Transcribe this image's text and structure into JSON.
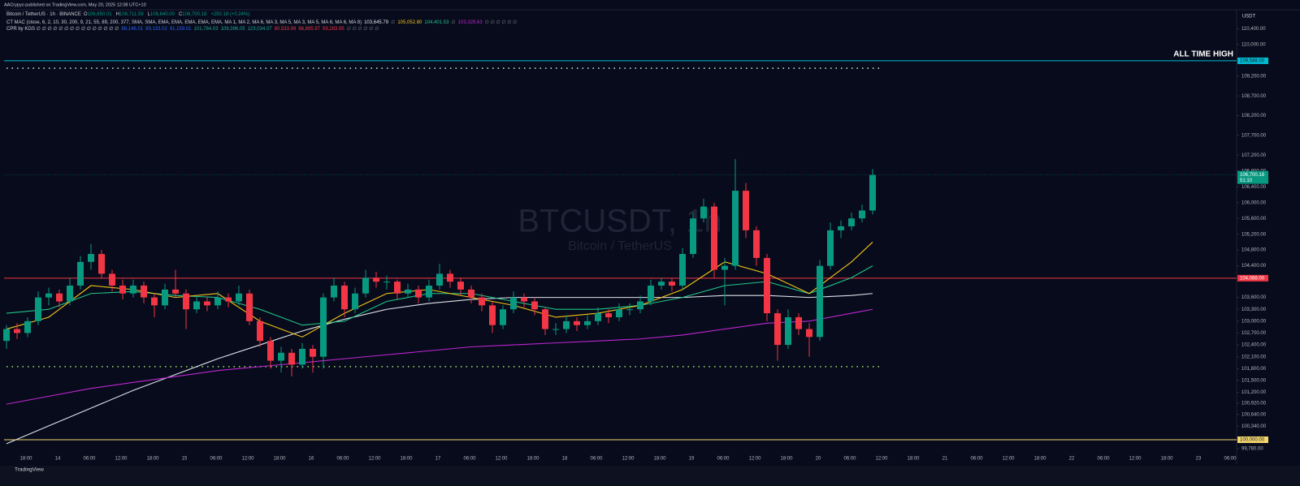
{
  "chart_data": {
    "type": "candlestick",
    "publisher": "AACrypyo published on TradingView.com, May 20, 2025 12:08 UTC+10",
    "symbol_line": {
      "name": "Bitcoin / TetherUS · 1h · BINANCE",
      "ohlc": [
        {
          "k": "O",
          "v": "106,650.01"
        },
        {
          "k": "H",
          "v": "106,711.59"
        },
        {
          "k": "L",
          "v": "106,640.00"
        },
        {
          "k": "C",
          "v": "106,700.18"
        }
      ],
      "change": "+250.18 (+0.24%)"
    },
    "ma_line": {
      "name": "CT MAC (close, 6, 2, 10, 30, 200, 9, 21, 55, 89, 200, 377, SMA, SMA, EMA, EMA, EMA, EMA, EMA, MA 1, MA 2, MA 6, MA 3, MA 5, MA 3, MA 5, MA 6, MA 6, MA 8)",
      "values": [
        {
          "v": "103,645.79",
          "color": "#e0e3eb"
        },
        {
          "v": "∅",
          "color": "#787b86"
        },
        {
          "v": "105,052.80",
          "color": "#f5c518"
        },
        {
          "v": "104,401.53",
          "color": "#22c58b"
        },
        {
          "v": "∅",
          "color": "#787b86"
        },
        {
          "v": "103,329.63",
          "color": "#c026d3"
        },
        {
          "v": "∅ ∅ ∅ ∅ ∅ ∅",
          "color": "#787b86"
        }
      ]
    },
    "cpr_line": {
      "name": "CPR by KGS ∅ ∅ ∅ ∅ ∅ ∅ ∅ ∅ ∅ ∅ ∅ ∅ ∅ ∅ ∅",
      "values": [
        {
          "v": "88,146.01",
          "color": "#2962ff"
        },
        {
          "v": "89,133.02",
          "color": "#2962ff"
        },
        {
          "v": "91,159.01",
          "color": "#2962ff"
        },
        {
          "v": "101,784.03",
          "color": "#22ab94"
        },
        {
          "v": "109,396.05",
          "color": "#22ab94"
        },
        {
          "v": "123,034.07",
          "color": "#22ab94"
        },
        {
          "v": "80,533.99",
          "color": "#f23645"
        },
        {
          "v": "66,895.97",
          "color": "#f23645"
        },
        {
          "v": "59,283.95",
          "color": "#f23645"
        },
        {
          "v": "∅ ∅ ∅ ∅ ∅ ∅",
          "color": "#787b86"
        }
      ]
    },
    "watermark": "BTCUSDT, 1h",
    "watermark_sub": "Bitcoin / TetherUS",
    "currency": "USDT",
    "footer": "TradingView",
    "up_color": "#089981",
    "down_color": "#f23645",
    "ylim": [
      99630,
      110880
    ],
    "yticks": [
      {
        "value": 110400,
        "label": "110,400.00"
      },
      {
        "value": 110000,
        "label": "110,000.00"
      },
      {
        "value": 109200,
        "label": "109,200.00"
      },
      {
        "value": 108700,
        "label": "108,700.00"
      },
      {
        "value": 108200,
        "label": "108,200.00"
      },
      {
        "value": 107700,
        "label": "107,700.00"
      },
      {
        "value": 107200,
        "label": "107,200.00"
      },
      {
        "value": 106800,
        "label": "106,800.00"
      },
      {
        "value": 106400,
        "label": "106,400.00"
      },
      {
        "value": 106000,
        "label": "106,000.00"
      },
      {
        "value": 105600,
        "label": "105,600.00"
      },
      {
        "value": 105200,
        "label": "105,200.00"
      },
      {
        "value": 104800,
        "label": "104,800.00"
      },
      {
        "value": 104400,
        "label": "104,400.00"
      },
      {
        "value": 103600,
        "label": "103,600.00"
      },
      {
        "value": 103300,
        "label": "103,300.00"
      },
      {
        "value": 103000,
        "label": "103,000.00"
      },
      {
        "value": 102700,
        "label": "102,700.00"
      },
      {
        "value": 102400,
        "label": "102,400.00"
      },
      {
        "value": 102100,
        "label": "102,100.00"
      },
      {
        "value": 101800,
        "label": "101,800.00"
      },
      {
        "value": 101500,
        "label": "101,500.00"
      },
      {
        "value": 101200,
        "label": "101,200.00"
      },
      {
        "value": 100920,
        "label": "100,920.00"
      },
      {
        "value": 100640,
        "label": "100,640.00"
      },
      {
        "value": 100340,
        "label": "100,340.00"
      },
      {
        "value": 99780,
        "label": "99,780.00"
      }
    ],
    "xlabels": [
      "18:00",
      "14",
      "06:00",
      "12:00",
      "18:00",
      "15",
      "06:00",
      "12:00",
      "18:00",
      "16",
      "06:00",
      "12:00",
      "18:00",
      "17",
      "06:00",
      "12:00",
      "18:00",
      "18",
      "06:00",
      "12:00",
      "18:00",
      "19",
      "06:00",
      "12:00",
      "18:00",
      "20",
      "06:00",
      "12:00",
      "18:00",
      "21",
      "06:00",
      "12:00",
      "18:00",
      "22",
      "06:00",
      "12:00",
      "18:00",
      "23",
      "06:00"
    ],
    "price_lines": [
      {
        "value": 109588,
        "label": "109,588.00",
        "color": "#00bcd4",
        "text": "ALL TIME HIGH"
      },
      {
        "value": 104088,
        "label": "104,088.00",
        "color": "#f23645"
      },
      {
        "value": 100000,
        "label": "100,000.00",
        "color": "#f5d76e"
      }
    ],
    "current": {
      "value": 106700.18,
      "label": "106,700.18",
      "countdown": "51:10",
      "color": "#089981"
    },
    "dotted_levels": [
      {
        "value": 109400,
        "color": "#c9f2dd"
      },
      {
        "value": 101850,
        "color": "#a5e36b"
      }
    ],
    "candles": [
      [
        102500,
        102900,
        102300,
        102800
      ],
      [
        102800,
        102950,
        102550,
        102700
      ],
      [
        102700,
        103100,
        102600,
        103000
      ],
      [
        103000,
        103750,
        102900,
        103600
      ],
      [
        103600,
        103850,
        103400,
        103700
      ],
      [
        103700,
        103800,
        103350,
        103500
      ],
      [
        103500,
        104100,
        103400,
        103900
      ],
      [
        103900,
        104650,
        103800,
        104500
      ],
      [
        104500,
        104950,
        104300,
        104700
      ],
      [
        104700,
        104800,
        104100,
        104200
      ],
      [
        104200,
        104300,
        103750,
        103900
      ],
      [
        103900,
        104050,
        103550,
        103700
      ],
      [
        103700,
        104050,
        103600,
        103900
      ],
      [
        103900,
        104000,
        103450,
        103600
      ],
      [
        103600,
        103700,
        103100,
        103400
      ],
      [
        103400,
        103950,
        103300,
        103800
      ],
      [
        103800,
        104300,
        103600,
        103700
      ],
      [
        103700,
        103800,
        102800,
        103300
      ],
      [
        103300,
        103650,
        103200,
        103500
      ],
      [
        103500,
        103600,
        103250,
        103400
      ],
      [
        103400,
        103750,
        103300,
        103600
      ],
      [
        103600,
        103700,
        103350,
        103500
      ],
      [
        103500,
        103900,
        103400,
        103700
      ],
      [
        103700,
        103800,
        102900,
        103000
      ],
      [
        103000,
        103100,
        102350,
        102500
      ],
      [
        102500,
        102600,
        101800,
        102000
      ],
      [
        102000,
        102350,
        101700,
        102200
      ],
      [
        102200,
        102300,
        101600,
        101900
      ],
      [
        101900,
        102450,
        101800,
        102300
      ],
      [
        102300,
        102400,
        101700,
        102100
      ],
      [
        102100,
        103700,
        101800,
        103600
      ],
      [
        103600,
        104100,
        103500,
        103900
      ],
      [
        103900,
        104000,
        103100,
        103300
      ],
      [
        103300,
        103850,
        103200,
        103700
      ],
      [
        103700,
        104300,
        103600,
        104100
      ],
      [
        104100,
        104250,
        103850,
        104000
      ],
      [
        104000,
        104150,
        103800,
        104000
      ],
      [
        104000,
        104050,
        103550,
        103700
      ],
      [
        103700,
        103950,
        103600,
        103800
      ],
      [
        103800,
        103900,
        103450,
        103600
      ],
      [
        103600,
        104050,
        103500,
        103900
      ],
      [
        103900,
        104450,
        103800,
        104200
      ],
      [
        104200,
        104300,
        103850,
        104000
      ],
      [
        104000,
        104100,
        103650,
        103800
      ],
      [
        103800,
        103900,
        103450,
        103600
      ],
      [
        103600,
        103700,
        103250,
        103400
      ],
      [
        103400,
        103500,
        102700,
        102900
      ],
      [
        102900,
        103400,
        102800,
        103300
      ],
      [
        103300,
        103750,
        103200,
        103600
      ],
      [
        103600,
        103700,
        103350,
        103500
      ],
      [
        103500,
        103600,
        103150,
        103300
      ],
      [
        103300,
        103350,
        102650,
        102800
      ],
      [
        102800,
        102950,
        102650,
        102800
      ],
      [
        102800,
        103150,
        102700,
        103000
      ],
      [
        103000,
        103100,
        102750,
        102900
      ],
      [
        102900,
        103150,
        102800,
        103000
      ],
      [
        103000,
        103350,
        102900,
        103200
      ],
      [
        103200,
        103300,
        102950,
        103100
      ],
      [
        103100,
        103450,
        103000,
        103300
      ],
      [
        103300,
        103450,
        103150,
        103300
      ],
      [
        103300,
        103650,
        103200,
        103500
      ],
      [
        103500,
        104050,
        103400,
        103900
      ],
      [
        103900,
        104100,
        103800,
        104000
      ],
      [
        104000,
        104100,
        103750,
        103900
      ],
      [
        103900,
        104850,
        103800,
        104700
      ],
      [
        104700,
        105750,
        104600,
        105600
      ],
      [
        105600,
        106100,
        105500,
        105900
      ],
      [
        105900,
        106000,
        104100,
        104300
      ],
      [
        104300,
        104600,
        103400,
        104400
      ],
      [
        104400,
        107100,
        104300,
        106300
      ],
      [
        106300,
        106500,
        105100,
        105300
      ],
      [
        105300,
        105400,
        104400,
        104600
      ],
      [
        104600,
        104700,
        103000,
        103200
      ],
      [
        103200,
        103300,
        102000,
        102400
      ],
      [
        102400,
        103300,
        102300,
        103100
      ],
      [
        103100,
        103200,
        102650,
        102800
      ],
      [
        102800,
        102950,
        102100,
        102600
      ],
      [
        102600,
        104550,
        102500,
        104400
      ],
      [
        104400,
        105500,
        104300,
        105300
      ],
      [
        105300,
        105550,
        105100,
        105400
      ],
      [
        105400,
        105750,
        105300,
        105600
      ],
      [
        105600,
        105950,
        105500,
        105800
      ],
      [
        105800,
        106850,
        105700,
        106700.18
      ]
    ],
    "ma_x": [
      0,
      4,
      8,
      12,
      16,
      20,
      24,
      28,
      32,
      36,
      40,
      44,
      48,
      52,
      56,
      60,
      64,
      68,
      72,
      76,
      80,
      82
    ],
    "series": [
      {
        "color": "#e0e3eb",
        "values": [
          99900,
          100350,
          100800,
          101250,
          101650,
          102050,
          102400,
          102750,
          103050,
          103300,
          103450,
          103550,
          103600,
          103600,
          103600,
          103600,
          103600,
          103650,
          103650,
          103600,
          103650,
          103700
        ]
      },
      {
        "color": "#c026d3",
        "values": [
          100900,
          101100,
          101300,
          101450,
          101600,
          101750,
          101850,
          101950,
          102050,
          102150,
          102250,
          102350,
          102400,
          102450,
          102500,
          102550,
          102650,
          102800,
          102950,
          103000,
          103200,
          103300
        ]
      },
      {
        "color": "#22c58b",
        "values": [
          103200,
          103300,
          103700,
          103750,
          103650,
          103600,
          103300,
          102900,
          103000,
          103500,
          103700,
          103700,
          103500,
          103300,
          103300,
          103400,
          103600,
          103900,
          104000,
          103700,
          104100,
          104400
        ]
      },
      {
        "color": "#f5c518",
        "values": [
          102800,
          103100,
          103900,
          103800,
          103600,
          103700,
          103000,
          102600,
          103200,
          103700,
          103800,
          103600,
          103400,
          103100,
          103200,
          103400,
          103800,
          104500,
          104200,
          103700,
          104500,
          105000
        ]
      }
    ]
  }
}
